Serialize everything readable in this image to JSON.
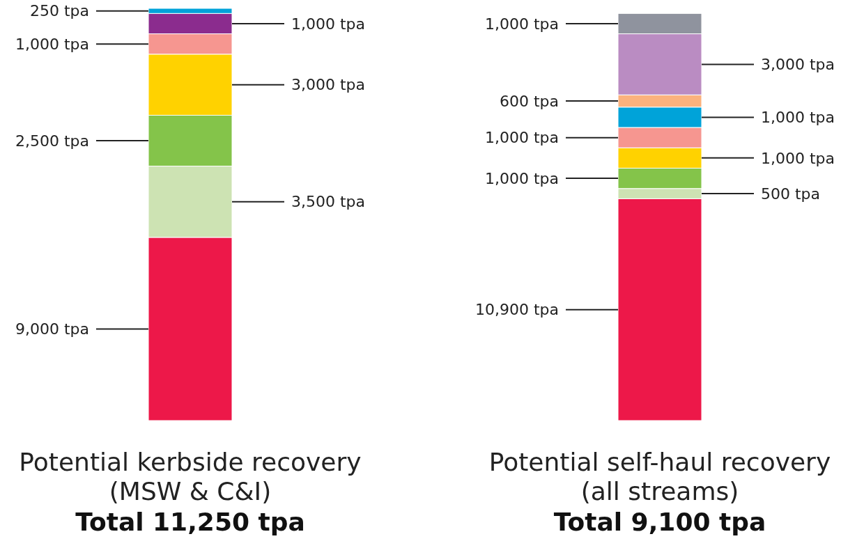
{
  "chart_data": {
    "type": "bar",
    "stacked": true,
    "categories": [
      "Potential kerbside recovery\n(MSW & C&I)",
      "Potential self-haul recovery\n(all streams)"
    ],
    "annotations": [
      "Total 11,250 tpa",
      "Total 9,100 tpa"
    ],
    "series": [
      {
        "color": "#ed1849",
        "values": [
          9000,
          10900
        ],
        "value_labels": [
          "9,000 tpa",
          "10,900 tpa"
        ]
      },
      {
        "color": "#cde3b3",
        "values": [
          3500,
          500
        ],
        "value_labels": [
          "3,500 tpa",
          "500 tpa"
        ]
      },
      {
        "color": "#84c44a",
        "values": [
          2500,
          1000
        ],
        "value_labels": [
          "2,500 tpa",
          "1,000 tpa"
        ]
      },
      {
        "color": "#ffd200",
        "values": [
          3000,
          1000
        ],
        "value_labels": [
          "3,000 tpa",
          "1,000 tpa"
        ]
      },
      {
        "color": "#f69690",
        "values": [
          1000,
          1000
        ],
        "value_labels": [
          "1,000 tpa",
          "1,000 tpa"
        ]
      },
      {
        "color": "#8b2c8e",
        "values": [
          1000,
          null
        ],
        "value_labels": [
          "1,000 tpa",
          null
        ]
      },
      {
        "color": "#00a3d9",
        "values": [
          250,
          1000
        ],
        "value_labels": [
          "250 tpa",
          "1,000 tpa"
        ]
      },
      {
        "color": "#fbb27d",
        "values": [
          null,
          600
        ],
        "value_labels": [
          null,
          "600 tpa"
        ]
      },
      {
        "color": "#ba8cc2",
        "values": [
          null,
          3000
        ],
        "value_labels": [
          null,
          "3,000 tpa"
        ]
      },
      {
        "color": "#8f939e",
        "values": [
          null,
          1000
        ],
        "value_labels": [
          null,
          "1,000 tpa"
        ]
      }
    ]
  }
}
